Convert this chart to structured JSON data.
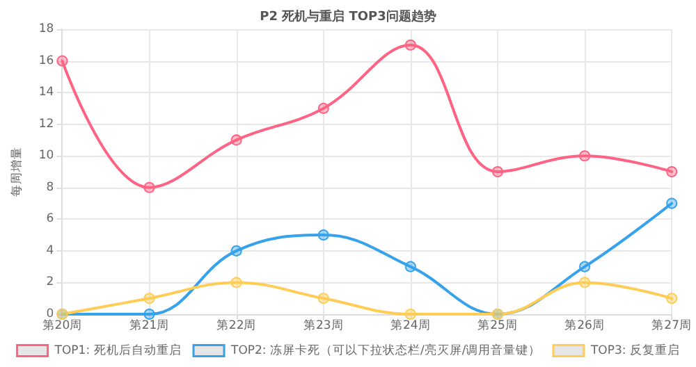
{
  "chart_data": {
    "type": "line",
    "title": "P2 死机与重启 TOP3问题趋势",
    "ylabel": "每周增量",
    "categories": [
      "第20周",
      "第21周",
      "第22周",
      "第23周",
      "第24周",
      "第25周",
      "第26周",
      "第27周"
    ],
    "series": [
      {
        "name": "TOP1: 死机后自动重启",
        "color": "#ff6384",
        "values": [
          16,
          8,
          11,
          13,
          17,
          9,
          10,
          9
        ]
      },
      {
        "name": "TOP2: 冻屏卡死（可以下拉状态栏/亮灭屏/调用音量键）",
        "color": "#36a2eb",
        "values": [
          0,
          0,
          4,
          5,
          3,
          0,
          3,
          7
        ]
      },
      {
        "name": "TOP3: 反复重启",
        "color": "#ffcd56",
        "values": [
          0,
          1,
          2,
          1,
          0,
          0,
          2,
          1
        ]
      }
    ],
    "ylim": [
      0,
      18
    ],
    "yticks": [
      0,
      2,
      4,
      6,
      8,
      10,
      12,
      14,
      16,
      18
    ],
    "grid": true,
    "legend": "bottom",
    "marker": "circle",
    "line_style": "solid"
  }
}
